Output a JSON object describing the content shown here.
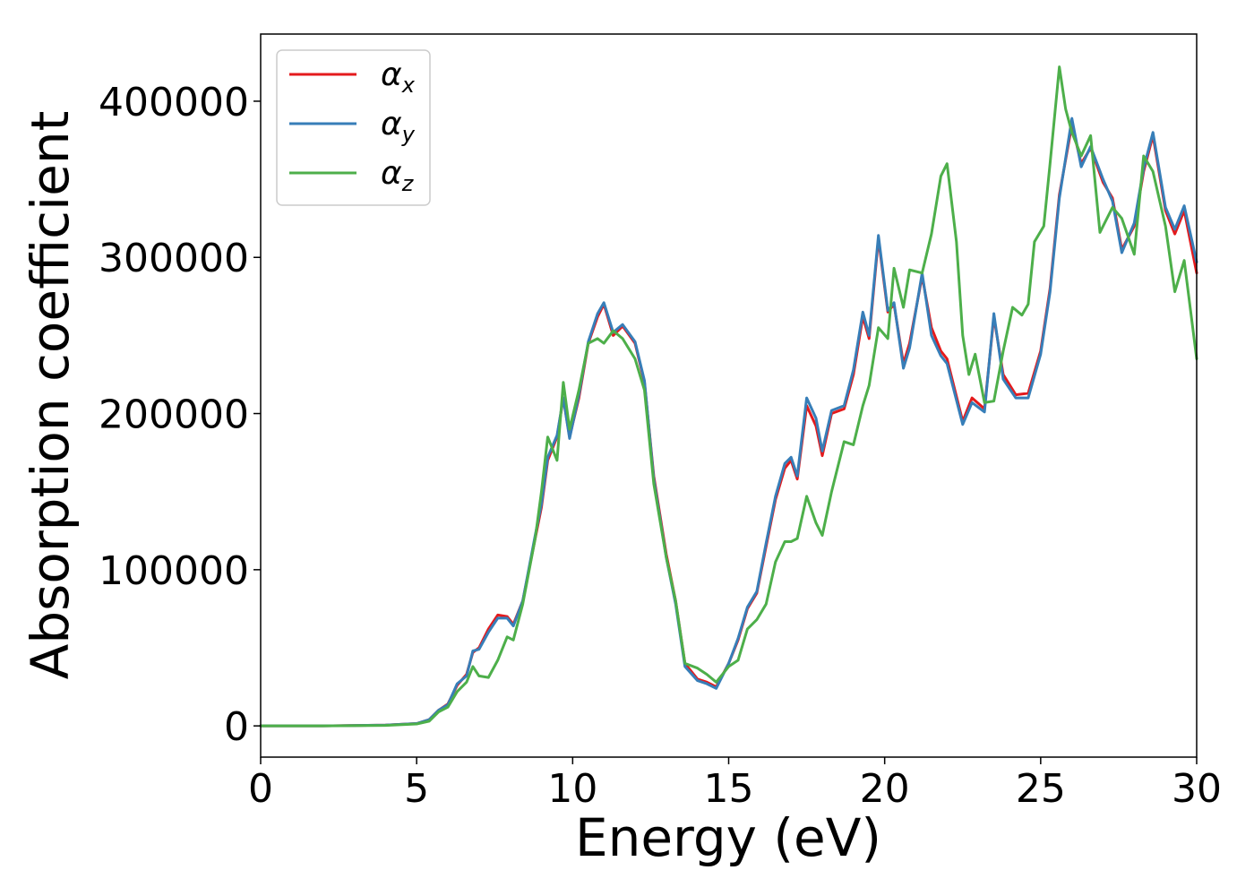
{
  "chart_data": {
    "type": "line",
    "xlabel": "Energy (eV)",
    "ylabel": "Absorption coefficient",
    "xlim": [
      0,
      30
    ],
    "ylim": [
      -20000,
      443000
    ],
    "x_ticks": [
      "0",
      "5",
      "10",
      "15",
      "20",
      "25",
      "30"
    ],
    "y_ticks": [
      "0",
      "100000",
      "200000",
      "300000",
      "400000"
    ],
    "grid": false,
    "legend_position": "top-left",
    "series": [
      {
        "name": "αx",
        "legend_main": "α",
        "legend_sub": "x",
        "color": "#e41a1c",
        "points": [
          [
            0,
            0
          ],
          [
            2,
            0
          ],
          [
            4,
            500
          ],
          [
            5,
            1500
          ],
          [
            5.4,
            4000
          ],
          [
            5.7,
            10000
          ],
          [
            6.0,
            14000
          ],
          [
            6.3,
            26000
          ],
          [
            6.6,
            33000
          ],
          [
            6.8,
            47000
          ],
          [
            7.0,
            50000
          ],
          [
            7.3,
            62000
          ],
          [
            7.6,
            71000
          ],
          [
            7.9,
            70000
          ],
          [
            8.1,
            65000
          ],
          [
            8.4,
            80000
          ],
          [
            8.8,
            120000
          ],
          [
            9.0,
            140000
          ],
          [
            9.2,
            170000
          ],
          [
            9.5,
            185000
          ],
          [
            9.7,
            210000
          ],
          [
            9.9,
            185000
          ],
          [
            10.2,
            210000
          ],
          [
            10.5,
            245000
          ],
          [
            10.8,
            262000
          ],
          [
            11.0,
            270000
          ],
          [
            11.3,
            250000
          ],
          [
            11.6,
            256000
          ],
          [
            12.0,
            245000
          ],
          [
            12.3,
            220000
          ],
          [
            12.6,
            160000
          ],
          [
            13.0,
            110000
          ],
          [
            13.3,
            80000
          ],
          [
            13.6,
            40000
          ],
          [
            14.0,
            30000
          ],
          [
            14.3,
            28000
          ],
          [
            14.6,
            25000
          ],
          [
            15.0,
            40000
          ],
          [
            15.3,
            55000
          ],
          [
            15.6,
            75000
          ],
          [
            15.9,
            85000
          ],
          [
            16.2,
            115000
          ],
          [
            16.5,
            145000
          ],
          [
            16.8,
            165000
          ],
          [
            17.0,
            170000
          ],
          [
            17.2,
            158000
          ],
          [
            17.5,
            205000
          ],
          [
            17.8,
            192000
          ],
          [
            18.0,
            173000
          ],
          [
            18.3,
            200000
          ],
          [
            18.7,
            203000
          ],
          [
            19.0,
            225000
          ],
          [
            19.3,
            262000
          ],
          [
            19.5,
            248000
          ],
          [
            19.8,
            312000
          ],
          [
            20.1,
            265000
          ],
          [
            20.3,
            270000
          ],
          [
            20.6,
            232000
          ],
          [
            20.8,
            245000
          ],
          [
            21.2,
            288000
          ],
          [
            21.5,
            255000
          ],
          [
            21.8,
            240000
          ],
          [
            22.0,
            235000
          ],
          [
            22.5,
            195000
          ],
          [
            22.8,
            210000
          ],
          [
            23.2,
            203000
          ],
          [
            23.5,
            262000
          ],
          [
            23.8,
            225000
          ],
          [
            24.2,
            212000
          ],
          [
            24.6,
            213000
          ],
          [
            25.0,
            240000
          ],
          [
            25.3,
            280000
          ],
          [
            25.6,
            340000
          ],
          [
            26.0,
            385000
          ],
          [
            26.3,
            360000
          ],
          [
            26.6,
            370000
          ],
          [
            27.0,
            348000
          ],
          [
            27.3,
            338000
          ],
          [
            27.6,
            305000
          ],
          [
            28.0,
            320000
          ],
          [
            28.3,
            355000
          ],
          [
            28.6,
            378000
          ],
          [
            29.0,
            330000
          ],
          [
            29.3,
            315000
          ],
          [
            29.6,
            330000
          ],
          [
            30.0,
            290000
          ]
        ]
      },
      {
        "name": "αy",
        "legend_main": "α",
        "legend_sub": "y",
        "color": "#377eb8",
        "points": [
          [
            0,
            0
          ],
          [
            2,
            0
          ],
          [
            4,
            500
          ],
          [
            5,
            1500
          ],
          [
            5.4,
            4000
          ],
          [
            5.7,
            10000
          ],
          [
            6.0,
            13500
          ],
          [
            6.3,
            27000
          ],
          [
            6.6,
            32000
          ],
          [
            6.8,
            48000
          ],
          [
            7.0,
            49000
          ],
          [
            7.3,
            60000
          ],
          [
            7.6,
            69000
          ],
          [
            7.9,
            69000
          ],
          [
            8.1,
            64000
          ],
          [
            8.4,
            80000
          ],
          [
            8.8,
            122000
          ],
          [
            9.0,
            142000
          ],
          [
            9.2,
            172000
          ],
          [
            9.5,
            186000
          ],
          [
            9.7,
            210000
          ],
          [
            9.9,
            184000
          ],
          [
            10.2,
            212000
          ],
          [
            10.5,
            246000
          ],
          [
            10.8,
            264000
          ],
          [
            11.0,
            271000
          ],
          [
            11.3,
            252000
          ],
          [
            11.6,
            257000
          ],
          [
            12.0,
            246000
          ],
          [
            12.3,
            221000
          ],
          [
            12.6,
            158000
          ],
          [
            13.0,
            108000
          ],
          [
            13.3,
            78000
          ],
          [
            13.6,
            38000
          ],
          [
            14.0,
            29000
          ],
          [
            14.3,
            27000
          ],
          [
            14.6,
            24000
          ],
          [
            15.0,
            40000
          ],
          [
            15.3,
            56000
          ],
          [
            15.6,
            76000
          ],
          [
            15.9,
            86000
          ],
          [
            16.2,
            117000
          ],
          [
            16.5,
            147000
          ],
          [
            16.8,
            168000
          ],
          [
            17.0,
            172000
          ],
          [
            17.2,
            160000
          ],
          [
            17.5,
            210000
          ],
          [
            17.8,
            197000
          ],
          [
            18.0,
            176000
          ],
          [
            18.3,
            202000
          ],
          [
            18.7,
            205000
          ],
          [
            19.0,
            228000
          ],
          [
            19.3,
            265000
          ],
          [
            19.5,
            250000
          ],
          [
            19.8,
            314000
          ],
          [
            20.1,
            266000
          ],
          [
            20.3,
            271000
          ],
          [
            20.6,
            229000
          ],
          [
            20.8,
            242000
          ],
          [
            21.2,
            290000
          ],
          [
            21.5,
            250000
          ],
          [
            21.8,
            237000
          ],
          [
            22.0,
            232000
          ],
          [
            22.5,
            193000
          ],
          [
            22.8,
            207000
          ],
          [
            23.2,
            201000
          ],
          [
            23.5,
            264000
          ],
          [
            23.8,
            222000
          ],
          [
            24.2,
            210000
          ],
          [
            24.6,
            210000
          ],
          [
            25.0,
            238000
          ],
          [
            25.3,
            278000
          ],
          [
            25.6,
            338000
          ],
          [
            26.0,
            389000
          ],
          [
            26.3,
            358000
          ],
          [
            26.6,
            371000
          ],
          [
            27.0,
            350000
          ],
          [
            27.3,
            336000
          ],
          [
            27.6,
            303000
          ],
          [
            28.0,
            322000
          ],
          [
            28.3,
            357000
          ],
          [
            28.6,
            380000
          ],
          [
            29.0,
            332000
          ],
          [
            29.3,
            318000
          ],
          [
            29.6,
            333000
          ],
          [
            30.0,
            297000
          ]
        ]
      },
      {
        "name": "αz",
        "legend_main": "α",
        "legend_sub": "z",
        "color": "#4daf4a",
        "points": [
          [
            0,
            0
          ],
          [
            2,
            0
          ],
          [
            4,
            300
          ],
          [
            5,
            1200
          ],
          [
            5.4,
            3000
          ],
          [
            5.7,
            9000
          ],
          [
            6.0,
            12000
          ],
          [
            6.3,
            22000
          ],
          [
            6.6,
            28000
          ],
          [
            6.8,
            38000
          ],
          [
            7.0,
            32000
          ],
          [
            7.3,
            31000
          ],
          [
            7.6,
            42000
          ],
          [
            7.9,
            57000
          ],
          [
            8.1,
            55000
          ],
          [
            8.4,
            78000
          ],
          [
            8.8,
            120000
          ],
          [
            9.0,
            150000
          ],
          [
            9.2,
            185000
          ],
          [
            9.5,
            170000
          ],
          [
            9.7,
            220000
          ],
          [
            9.9,
            190000
          ],
          [
            10.2,
            215000
          ],
          [
            10.5,
            245000
          ],
          [
            10.8,
            248000
          ],
          [
            11.0,
            245000
          ],
          [
            11.3,
            253000
          ],
          [
            11.6,
            248000
          ],
          [
            12.0,
            235000
          ],
          [
            12.3,
            215000
          ],
          [
            12.6,
            155000
          ],
          [
            13.0,
            108000
          ],
          [
            13.3,
            80000
          ],
          [
            13.6,
            40000
          ],
          [
            14.0,
            37000
          ],
          [
            14.3,
            33000
          ],
          [
            14.6,
            28000
          ],
          [
            15.0,
            38000
          ],
          [
            15.3,
            42000
          ],
          [
            15.6,
            62000
          ],
          [
            15.9,
            68000
          ],
          [
            16.2,
            78000
          ],
          [
            16.5,
            105000
          ],
          [
            16.8,
            118000
          ],
          [
            17.0,
            118000
          ],
          [
            17.2,
            120000
          ],
          [
            17.5,
            147000
          ],
          [
            17.8,
            130000
          ],
          [
            18.0,
            122000
          ],
          [
            18.3,
            150000
          ],
          [
            18.7,
            182000
          ],
          [
            19.0,
            180000
          ],
          [
            19.3,
            205000
          ],
          [
            19.5,
            218000
          ],
          [
            19.8,
            255000
          ],
          [
            20.1,
            248000
          ],
          [
            20.3,
            293000
          ],
          [
            20.6,
            268000
          ],
          [
            20.8,
            292000
          ],
          [
            21.2,
            290000
          ],
          [
            21.5,
            315000
          ],
          [
            21.8,
            352000
          ],
          [
            22.0,
            360000
          ],
          [
            22.3,
            310000
          ],
          [
            22.5,
            250000
          ],
          [
            22.7,
            225000
          ],
          [
            22.9,
            238000
          ],
          [
            23.2,
            207000
          ],
          [
            23.5,
            208000
          ],
          [
            23.8,
            240000
          ],
          [
            24.1,
            268000
          ],
          [
            24.4,
            263000
          ],
          [
            24.6,
            270000
          ],
          [
            24.8,
            310000
          ],
          [
            25.1,
            320000
          ],
          [
            25.3,
            360000
          ],
          [
            25.6,
            422000
          ],
          [
            25.8,
            395000
          ],
          [
            26.0,
            380000
          ],
          [
            26.3,
            365000
          ],
          [
            26.6,
            378000
          ],
          [
            26.9,
            316000
          ],
          [
            27.3,
            332000
          ],
          [
            27.6,
            325000
          ],
          [
            28.0,
            302000
          ],
          [
            28.3,
            365000
          ],
          [
            28.6,
            355000
          ],
          [
            29.0,
            320000
          ],
          [
            29.3,
            278000
          ],
          [
            29.6,
            298000
          ],
          [
            30.0,
            235000
          ]
        ]
      }
    ]
  }
}
